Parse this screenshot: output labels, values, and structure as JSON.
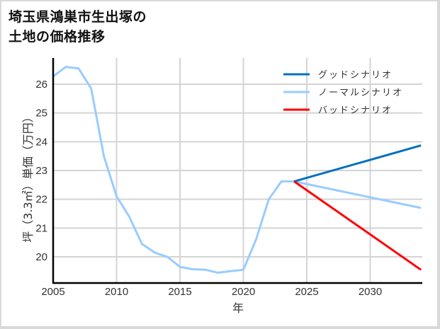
{
  "title_line1": "埼玉県鴻巣市生出塚の",
  "title_line2": "土地の価格推移",
  "chart_data": {
    "type": "line",
    "title": "埼玉県鴻巣市生出塚の土地の価格推移",
    "xlabel": "年",
    "ylabel": "坪（3.3㎡）単価（万円）",
    "xlim": [
      2005,
      2034
    ],
    "ylim": [
      19.1,
      26.7
    ],
    "xticks": [
      2005,
      2010,
      2015,
      2020,
      2025,
      2030
    ],
    "yticks": [
      20,
      21,
      22,
      23,
      24,
      25,
      26
    ],
    "grid": true,
    "legend_position": "upper right",
    "series": [
      {
        "name": "ノーマルシナリオ",
        "color": "#99ccff",
        "x": [
          2005,
          2006,
          2007,
          2008,
          2009,
          2010,
          2011,
          2012,
          2013,
          2014,
          2015,
          2016,
          2017,
          2018,
          2019,
          2020,
          2021,
          2022,
          2023,
          2024,
          2034
        ],
        "values": [
          26.27,
          26.6,
          26.55,
          25.85,
          23.5,
          22.1,
          21.4,
          20.45,
          20.15,
          20.0,
          19.65,
          19.57,
          19.55,
          19.45,
          19.5,
          19.55,
          20.6,
          22.0,
          22.62,
          22.62,
          21.7
        ]
      },
      {
        "name": "グッドシナリオ",
        "color": "#0070c0",
        "x": [
          2024,
          2034
        ],
        "values": [
          22.62,
          23.87
        ]
      },
      {
        "name": "バッドシナリオ",
        "color": "#ff0000",
        "x": [
          2024,
          2034
        ],
        "values": [
          22.62,
          19.55
        ]
      }
    ]
  },
  "legend": [
    {
      "label": "グッドシナリオ",
      "color": "#0070c0"
    },
    {
      "label": "ノーマルシナリオ",
      "color": "#99ccff"
    },
    {
      "label": "バッドシナリオ",
      "color": "#ff0000"
    }
  ]
}
